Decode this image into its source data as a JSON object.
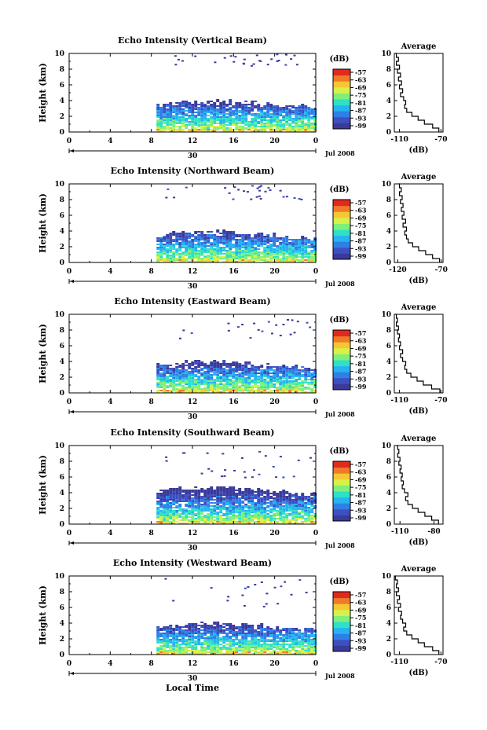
{
  "common": {
    "ylabel": "Height (km)",
    "y_ticks": [
      "0",
      "2",
      "4",
      "6",
      "8",
      "10"
    ],
    "x_ticks": [
      "0",
      "4",
      "8",
      "12",
      "16",
      "20",
      "0"
    ],
    "date_label": "30",
    "month_label": "Jul 2008",
    "xlabel": "Local Time",
    "cbar_unit": "(dB)",
    "cbar_ticks": [
      "-57",
      "-63",
      "-69",
      "-75",
      "-81",
      "-87",
      "-93",
      "-99"
    ],
    "cbar_colors": [
      "#3a3a9a",
      "#3e4fc0",
      "#2f7fe6",
      "#25b4f0",
      "#2fe0c8",
      "#7ef07a",
      "#d9f04a",
      "#f5c832",
      "#f07a28",
      "#e02a1e"
    ],
    "avg_title": "Average",
    "avg_xlabel": "(dB)",
    "avg_yticks": [
      "0",
      "2",
      "4",
      "6",
      "8",
      "10"
    ]
  },
  "chart_data": [
    {
      "type": "heatmap",
      "title": "Echo Intensity (Vertical Beam)",
      "xlabel": "Local Time",
      "ylabel": "Height (km)",
      "xlim": [
        0,
        24
      ],
      "ylim": [
        0,
        10
      ],
      "colorbar": {
        "unit": "dB",
        "ticks": [
          -57,
          -63,
          -69,
          -75,
          -81,
          -87,
          -93,
          -99
        ]
      },
      "echo_layer": {
        "start_hour": 8.5,
        "top_km": 3.5,
        "upper_echo_km": [
          8.5,
          10
        ]
      },
      "average_profile": {
        "title": "Average",
        "xlabel": "(dB)",
        "x_ticks": [
          "-110",
          "-70"
        ],
        "xlim": [
          -115,
          -68
        ],
        "height_km": [
          0,
          0.5,
          1,
          1.5,
          2,
          2.5,
          3,
          3.5,
          4,
          4.5,
          5,
          5.5,
          6,
          6.5,
          7,
          7.5,
          8,
          8.5,
          9,
          9.5,
          10
        ],
        "db": [
          -72,
          -78,
          -86,
          -92,
          -98,
          -103,
          -105,
          -104,
          -106,
          -109,
          -107,
          -110,
          -108,
          -111,
          -109,
          -112,
          -110,
          -113,
          -111,
          -113,
          -114
        ]
      }
    },
    {
      "type": "heatmap",
      "title": "Echo Intensity (Northward Beam)",
      "xlabel": "Local Time",
      "ylabel": "Height (km)",
      "xlim": [
        0,
        24
      ],
      "ylim": [
        0,
        10
      ],
      "colorbar": {
        "unit": "dB",
        "ticks": [
          -57,
          -63,
          -69,
          -75,
          -81,
          -87,
          -93,
          -99
        ]
      },
      "echo_layer": {
        "start_hour": 8.5,
        "top_km": 3.5,
        "upper_echo_km": [
          8,
          10
        ]
      },
      "average_profile": {
        "title": "Average",
        "xlabel": "(dB)",
        "x_ticks": [
          "-120",
          "-70"
        ],
        "xlim": [
          -124,
          -68
        ],
        "height_km": [
          0,
          0.5,
          1,
          1.5,
          2,
          2.5,
          3,
          3.5,
          4,
          4.5,
          5,
          5.5,
          6,
          6.5,
          7,
          7.5,
          8,
          8.5,
          9,
          9.5,
          10
        ],
        "db": [
          -72,
          -80,
          -88,
          -96,
          -103,
          -108,
          -110,
          -112,
          -110,
          -114,
          -111,
          -115,
          -113,
          -116,
          -114,
          -117,
          -115,
          -118,
          -116,
          -118,
          -119
        ]
      }
    },
    {
      "type": "heatmap",
      "title": "Echo Intensity (Eastward Beam)",
      "xlabel": "Local Time",
      "ylabel": "Height (km)",
      "xlim": [
        0,
        24
      ],
      "ylim": [
        0,
        10
      ],
      "colorbar": {
        "unit": "dB",
        "ticks": [
          -57,
          -63,
          -69,
          -75,
          -81,
          -87,
          -93,
          -99
        ]
      },
      "echo_layer": {
        "start_hour": 8.5,
        "top_km": 3.5,
        "upper_echo_km": [
          7,
          9.5
        ]
      },
      "average_profile": {
        "title": "Average",
        "xlabel": "(dB)",
        "x_ticks": [
          "-110",
          "-70"
        ],
        "xlim": [
          -115,
          -68
        ],
        "height_km": [
          0,
          0.5,
          1,
          1.5,
          2,
          2.5,
          3,
          3.5,
          4,
          4.5,
          5,
          5.5,
          6,
          6.5,
          7,
          7.5,
          8,
          8.5,
          9,
          9.5,
          10
        ],
        "db": [
          -71,
          -79,
          -87,
          -93,
          -99,
          -103,
          -105,
          -104,
          -107,
          -109,
          -107,
          -110,
          -109,
          -111,
          -110,
          -112,
          -111,
          -113,
          -112,
          -113,
          -114
        ]
      }
    },
    {
      "type": "heatmap",
      "title": "Echo Intensity (Southward Beam)",
      "xlabel": "Local Time",
      "ylabel": "Height (km)",
      "xlim": [
        0,
        24
      ],
      "ylim": [
        0,
        10
      ],
      "colorbar": {
        "unit": "dB",
        "ticks": [
          -57,
          -63,
          -69,
          -75,
          -81,
          -87,
          -93,
          -99
        ]
      },
      "echo_layer": {
        "start_hour": 8.5,
        "top_km": 4.2,
        "upper_echo_km": [
          6,
          9.5
        ]
      },
      "average_profile": {
        "title": "Average",
        "xlabel": "(dB)",
        "x_ticks": [
          "-110",
          "-80"
        ],
        "xlim": [
          -115,
          -72
        ],
        "height_km": [
          0,
          0.5,
          1,
          1.5,
          2,
          2.5,
          3,
          3.5,
          4,
          4.5,
          5,
          5.5,
          6,
          6.5,
          7,
          7.5,
          8,
          8.5,
          9,
          9.5,
          10
        ],
        "db": [
          -76,
          -82,
          -88,
          -94,
          -99,
          -103,
          -105,
          -103,
          -106,
          -108,
          -107,
          -109,
          -108,
          -110,
          -109,
          -111,
          -110,
          -112,
          -111,
          -112,
          -113
        ]
      }
    },
    {
      "type": "heatmap",
      "title": "Echo Intensity (Westward Beam)",
      "xlabel": "Local Time",
      "ylabel": "Height (km)",
      "xlim": [
        0,
        24
      ],
      "ylim": [
        0,
        10
      ],
      "colorbar": {
        "unit": "dB",
        "ticks": [
          -57,
          -63,
          -69,
          -75,
          -81,
          -87,
          -93,
          -99
        ]
      },
      "echo_layer": {
        "start_hour": 8.5,
        "top_km": 3.5,
        "upper_echo_km": [
          6,
          10
        ]
      },
      "average_profile": {
        "title": "Average",
        "xlabel": "(dB)",
        "x_ticks": [
          "-110",
          "-70"
        ],
        "xlim": [
          -115,
          -68
        ],
        "height_km": [
          0,
          0.5,
          1,
          1.5,
          2,
          2.5,
          3,
          3.5,
          4,
          4.5,
          5,
          5.5,
          6,
          6.5,
          7,
          7.5,
          8,
          8.5,
          9,
          9.5,
          10
        ],
        "db": [
          -72,
          -78,
          -86,
          -92,
          -98,
          -103,
          -106,
          -104,
          -107,
          -109,
          -108,
          -111,
          -109,
          -112,
          -110,
          -113,
          -111,
          -113,
          -112,
          -114,
          -115
        ]
      }
    }
  ]
}
